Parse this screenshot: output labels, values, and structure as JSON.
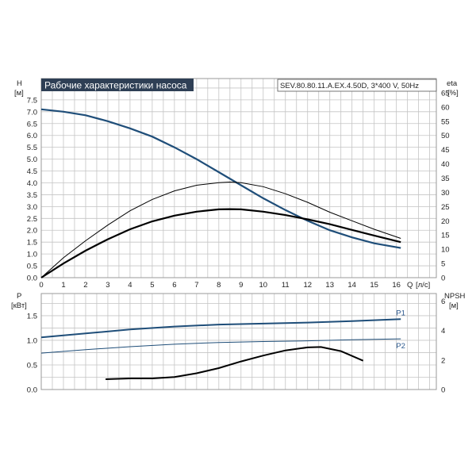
{
  "chart_data": [
    {
      "type": "line",
      "title": "Рабочие характеристики насоса",
      "subtitle": "SEV.80.80.11.A.EX.4.50D, 3*400 V, 50Hz",
      "ylabel": "H",
      "yunit": "[м]",
      "y2label": "eta",
      "y2unit": "[%]",
      "xlabel": "Q",
      "xunit": "[л/с]",
      "xlim": [
        0,
        17.8
      ],
      "ylim": [
        0,
        8.4
      ],
      "y2lim": [
        0,
        70
      ],
      "xticks": [
        "0",
        "1",
        "2",
        "3",
        "4",
        "5",
        "6",
        "7",
        "8",
        "9",
        "10",
        "11",
        "12",
        "13",
        "14",
        "15",
        "16"
      ],
      "yticks": [
        "0.0",
        "0.5",
        "1.0",
        "1.5",
        "2.0",
        "2.5",
        "3.0",
        "3.5",
        "4.0",
        "4.5",
        "5.0",
        "5.5",
        "6.0",
        "6.5",
        "7.0",
        "7.5"
      ],
      "y2ticks": [
        "0",
        "5",
        "10",
        "15",
        "20",
        "25",
        "30",
        "35",
        "40",
        "45",
        "50",
        "55",
        "60",
        "65"
      ],
      "grid": true,
      "colors": {
        "head": "#1f4e79",
        "eta": "#000000"
      },
      "series": [
        {
          "axis": "y",
          "x": [
            0,
            1,
            2,
            3,
            4,
            5,
            6,
            7,
            8,
            9,
            10,
            11,
            12,
            13,
            14,
            15,
            16.2
          ],
          "y": [
            7.1,
            7.0,
            6.85,
            6.6,
            6.3,
            5.95,
            5.5,
            5.0,
            4.45,
            3.9,
            3.35,
            2.85,
            2.4,
            2.0,
            1.7,
            1.45,
            1.25
          ]
        },
        {
          "axis": "y2",
          "x": [
            0,
            1,
            2,
            3,
            4,
            5,
            6,
            7,
            8,
            8.5,
            9,
            10,
            11,
            12,
            13,
            14,
            15,
            16.2
          ],
          "y": [
            0,
            7,
            13,
            18.5,
            23.5,
            27.5,
            30.5,
            32.5,
            33.4,
            33.6,
            33.4,
            32,
            29.5,
            26.5,
            23,
            20,
            17,
            13.8
          ]
        },
        {
          "axis": "y2",
          "x": [
            0,
            1,
            2,
            3,
            4,
            5,
            6,
            7,
            8,
            8.5,
            9,
            10,
            11,
            12,
            13,
            14,
            15,
            16.2
          ],
          "y": [
            0,
            5,
            9.5,
            13.5,
            17,
            19.8,
            21.8,
            23.2,
            24,
            24.1,
            24,
            23.2,
            22,
            20.5,
            18.8,
            16.8,
            14.8,
            12.5
          ]
        }
      ]
    },
    {
      "type": "line",
      "ylabel": "P",
      "yunit": "[кВт]",
      "y2label": "NPSH",
      "y2unit": "[м]",
      "xlim": [
        0,
        17.8
      ],
      "ylim": [
        0,
        1.95
      ],
      "y2lim": [
        0,
        6.5
      ],
      "yticks": [
        "0.0",
        "0.5",
        "1.0",
        "1.5"
      ],
      "y2ticks": [
        "0",
        "2",
        "4",
        "6"
      ],
      "grid": true,
      "colors": {
        "power": "#1f4e79",
        "npsh": "#000000"
      },
      "series": [
        {
          "name": "P1",
          "axis": "y",
          "x": [
            0,
            2,
            4,
            6,
            8,
            10,
            12,
            14,
            16.2
          ],
          "y": [
            1.06,
            1.14,
            1.22,
            1.28,
            1.32,
            1.34,
            1.36,
            1.39,
            1.43
          ]
        },
        {
          "name": "P2",
          "axis": "y",
          "x": [
            0,
            2,
            4,
            6,
            8,
            10,
            12,
            14,
            16.2
          ],
          "y": [
            0.74,
            0.81,
            0.87,
            0.92,
            0.955,
            0.975,
            0.99,
            1.01,
            1.03
          ]
        },
        {
          "axis": "y2",
          "x": [
            2.9,
            4,
            5,
            6,
            7,
            8,
            9,
            10,
            11,
            12,
            12.6,
            13.5,
            14.5
          ],
          "y": [
            0.7,
            0.75,
            0.75,
            0.85,
            1.1,
            1.45,
            1.9,
            2.3,
            2.65,
            2.85,
            2.88,
            2.6,
            1.95
          ]
        }
      ]
    }
  ]
}
